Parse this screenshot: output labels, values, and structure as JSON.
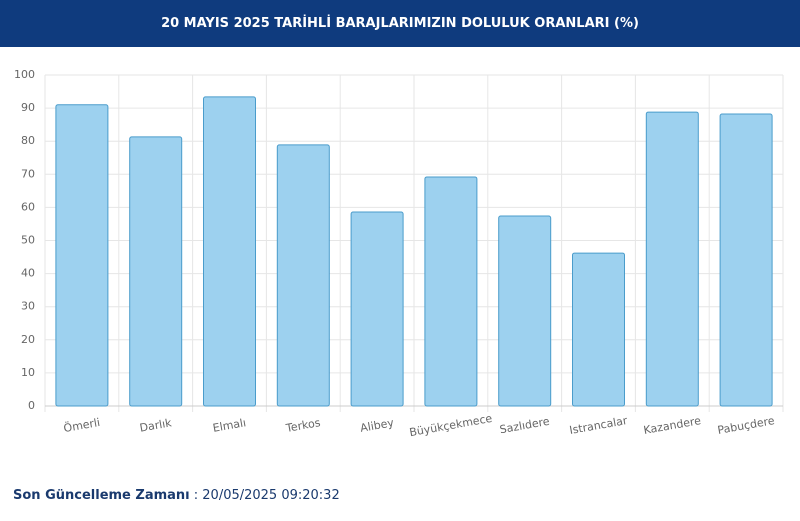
{
  "chart_data": {
    "type": "bar",
    "title": "20 MAYIS 2025 TARİHLİ BARAJLARIMIZIN DOLULUK ORANLARI (%)",
    "categories": [
      "Ömerli",
      "Darlık",
      "Elmalı",
      "Terkos",
      "Alibey",
      "Büyükçekmece",
      "Sazlıdere",
      "Istrancalar",
      "Kazandere",
      "Pabuçdere"
    ],
    "values": [
      91,
      81.3,
      93.4,
      78.9,
      58.6,
      69.2,
      57.4,
      46.2,
      88.8,
      88.2
    ],
    "color": "#9dd1ef",
    "ylim": [
      0,
      100
    ],
    "yticks": [
      0,
      10,
      20,
      30,
      40,
      50,
      60,
      70,
      80,
      90,
      100
    ],
    "grid": true
  },
  "footer": {
    "label": "Son Güncelleme Zamanı",
    "value": ": 20/05/2025 09:20:32"
  }
}
